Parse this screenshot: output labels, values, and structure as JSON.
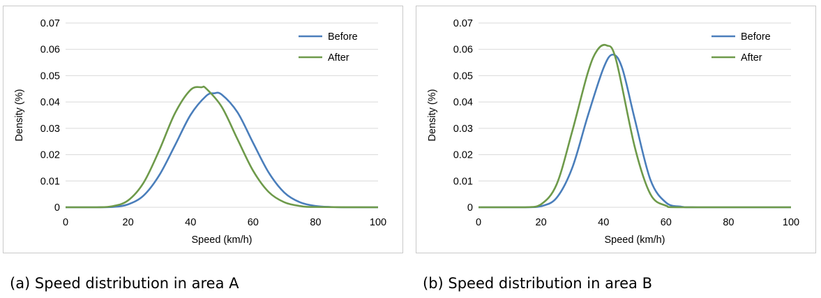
{
  "chart_data": [
    {
      "type": "line",
      "caption": "(a) Speed distribution in area A",
      "xlabel": "Speed (km/h)",
      "ylabel": "Density (%)",
      "xlim": [
        0,
        100
      ],
      "ylim": [
        0,
        0.07
      ],
      "xticks": [
        "0",
        "20",
        "40",
        "60",
        "80",
        "100"
      ],
      "yticks": [
        "0",
        "0.01",
        "0.02",
        "0.03",
        "0.04",
        "0.05",
        "0.06",
        "0.07"
      ],
      "grid": "horizontal",
      "legend": "top-right",
      "series": [
        {
          "name": "Before",
          "color": "#4a7ebb",
          "x": [
            0,
            10,
            15,
            20,
            25,
            30,
            35,
            40,
            45,
            47.5,
            50,
            55,
            60,
            65,
            70,
            75,
            80,
            85,
            90,
            100
          ],
          "y": [
            0,
            0,
            0.0001,
            0.0011,
            0.0045,
            0.0122,
            0.0235,
            0.0351,
            0.0423,
            0.0433,
            0.0428,
            0.0361,
            0.0245,
            0.0132,
            0.0056,
            0.0019,
            0.0005,
            0.0001,
            0,
            0
          ]
        },
        {
          "name": "After",
          "color": "#6e9a4a",
          "x": [
            0,
            10,
            15,
            20,
            25,
            30,
            35,
            40,
            43.5,
            45,
            50,
            55,
            60,
            65,
            70,
            75,
            80,
            100
          ],
          "y": [
            0,
            0,
            0.0004,
            0.0026,
            0.0094,
            0.0217,
            0.0357,
            0.0446,
            0.0456,
            0.0451,
            0.0381,
            0.0259,
            0.0139,
            0.0058,
            0.0019,
            0.0005,
            0.0001,
            0
          ]
        }
      ]
    },
    {
      "type": "line",
      "caption": "(b) Speed distribution in area B",
      "xlabel": "Speed (km/h)",
      "ylabel": "Density (%)",
      "xlim": [
        0,
        100
      ],
      "ylim": [
        0,
        0.07
      ],
      "xticks": [
        "0",
        "20",
        "40",
        "60",
        "80",
        "100"
      ],
      "yticks": [
        "0",
        "0.01",
        "0.02",
        "0.03",
        "0.04",
        "0.05",
        "0.06",
        "0.07"
      ],
      "grid": "horizontal",
      "legend": "top-right",
      "series": [
        {
          "name": "Before",
          "color": "#4a7ebb",
          "x": [
            0,
            15,
            20,
            25,
            30,
            35,
            40,
            43,
            46,
            50,
            55,
            60,
            65,
            70,
            100
          ],
          "y": [
            0,
            0,
            0.0004,
            0.0036,
            0.015,
            0.0348,
            0.0529,
            0.058,
            0.0528,
            0.0335,
            0.0105,
            0.0018,
            0.0002,
            0,
            0
          ]
        },
        {
          "name": "After",
          "color": "#6e9a4a",
          "x": [
            0,
            15,
            20,
            25,
            30,
            35,
            38,
            41,
            44,
            50,
            55,
            60,
            65,
            100
          ],
          "y": [
            0,
            0,
            0.0011,
            0.0087,
            0.0289,
            0.0512,
            0.0597,
            0.0615,
            0.0561,
            0.0229,
            0.005,
            0.0006,
            0,
            0
          ]
        }
      ]
    }
  ]
}
